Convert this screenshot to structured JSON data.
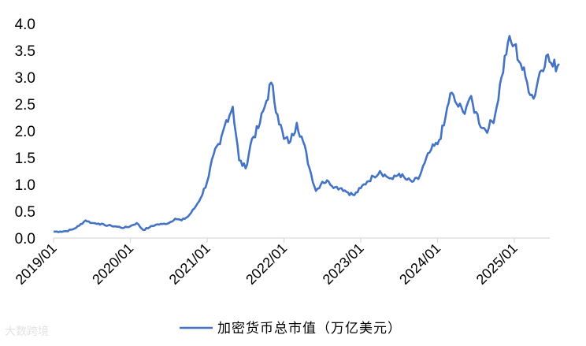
{
  "chart_data": {
    "type": "line",
    "title": "",
    "xlabel": "",
    "ylabel": "",
    "ylim": [
      0,
      4.0
    ],
    "yticks": [
      "0.0",
      "0.5",
      "1.0",
      "1.5",
      "2.0",
      "2.5",
      "3.0",
      "3.5",
      "4.0"
    ],
    "xticks": [
      "2019/01",
      "2020/01",
      "2021/01",
      "2022/01",
      "2023/01",
      "2024/01",
      "2025/01"
    ],
    "grid": false,
    "legend_position": "bottom",
    "series": [
      {
        "name": "加密货币总市值（万亿美元）",
        "color": "#4472c4",
        "points": [
          [
            "2019/01",
            0.12
          ],
          [
            "2019/02",
            0.12
          ],
          [
            "2019/03",
            0.13
          ],
          [
            "2019/04",
            0.16
          ],
          [
            "2019/05",
            0.23
          ],
          [
            "2019/06",
            0.33
          ],
          [
            "2019/07",
            0.28
          ],
          [
            "2019/08",
            0.27
          ],
          [
            "2019/09",
            0.24
          ],
          [
            "2019/10",
            0.23
          ],
          [
            "2019/11",
            0.21
          ],
          [
            "2019/12",
            0.19
          ],
          [
            "2020/01",
            0.22
          ],
          [
            "2020/02",
            0.28
          ],
          [
            "2020/03",
            0.15
          ],
          [
            "2020/04",
            0.2
          ],
          [
            "2020/05",
            0.25
          ],
          [
            "2020/06",
            0.26
          ],
          [
            "2020/07",
            0.28
          ],
          [
            "2020/08",
            0.36
          ],
          [
            "2020/09",
            0.33
          ],
          [
            "2020/10",
            0.4
          ],
          [
            "2020/11",
            0.55
          ],
          [
            "2020/12",
            0.75
          ],
          [
            "2021/01",
            1.05
          ],
          [
            "2021/02",
            1.55
          ],
          [
            "2021/03",
            1.75
          ],
          [
            "2021/04",
            2.2
          ],
          [
            "2021/05",
            2.45
          ],
          [
            "2021/06",
            1.45
          ],
          [
            "2021/07",
            1.3
          ],
          [
            "2021/08",
            1.85
          ],
          [
            "2021/09",
            2.05
          ],
          [
            "2021/10",
            2.45
          ],
          [
            "2021/11",
            2.9
          ],
          [
            "2021/12",
            2.3
          ],
          [
            "2022/01",
            1.85
          ],
          [
            "2022/02",
            1.8
          ],
          [
            "2022/03",
            2.15
          ],
          [
            "2022/04",
            1.8
          ],
          [
            "2022/05",
            1.3
          ],
          [
            "2022/06",
            0.88
          ],
          [
            "2022/07",
            1.05
          ],
          [
            "2022/08",
            1.05
          ],
          [
            "2022/09",
            0.95
          ],
          [
            "2022/10",
            0.93
          ],
          [
            "2022/11",
            0.85
          ],
          [
            "2022/12",
            0.8
          ],
          [
            "2023/01",
            0.93
          ],
          [
            "2023/02",
            1.05
          ],
          [
            "2023/03",
            1.15
          ],
          [
            "2023/04",
            1.25
          ],
          [
            "2023/05",
            1.15
          ],
          [
            "2023/06",
            1.1
          ],
          [
            "2023/07",
            1.2
          ],
          [
            "2023/08",
            1.1
          ],
          [
            "2023/09",
            1.05
          ],
          [
            "2023/10",
            1.1
          ],
          [
            "2023/11",
            1.4
          ],
          [
            "2023/12",
            1.65
          ],
          [
            "2024/01",
            1.75
          ],
          [
            "2024/02",
            2.1
          ],
          [
            "2024/03",
            2.7
          ],
          [
            "2024/04",
            2.5
          ],
          [
            "2024/05",
            2.35
          ],
          [
            "2024/06",
            2.6
          ],
          [
            "2024/07",
            2.35
          ],
          [
            "2024/08",
            2.05
          ],
          [
            "2024/09",
            2.05
          ],
          [
            "2024/10",
            2.3
          ],
          [
            "2024/11",
            3.0
          ],
          [
            "2024/12",
            3.65
          ],
          [
            "2025/01",
            3.6
          ],
          [
            "2025/02",
            3.25
          ],
          [
            "2025/03",
            2.9
          ],
          [
            "2025/04",
            2.6
          ],
          [
            "2025/05",
            3.1
          ],
          [
            "2025/06",
            3.4
          ],
          [
            "2025/07",
            3.2
          ],
          [
            "2025/08",
            3.25
          ]
        ]
      }
    ]
  },
  "watermark": "大数跨境"
}
